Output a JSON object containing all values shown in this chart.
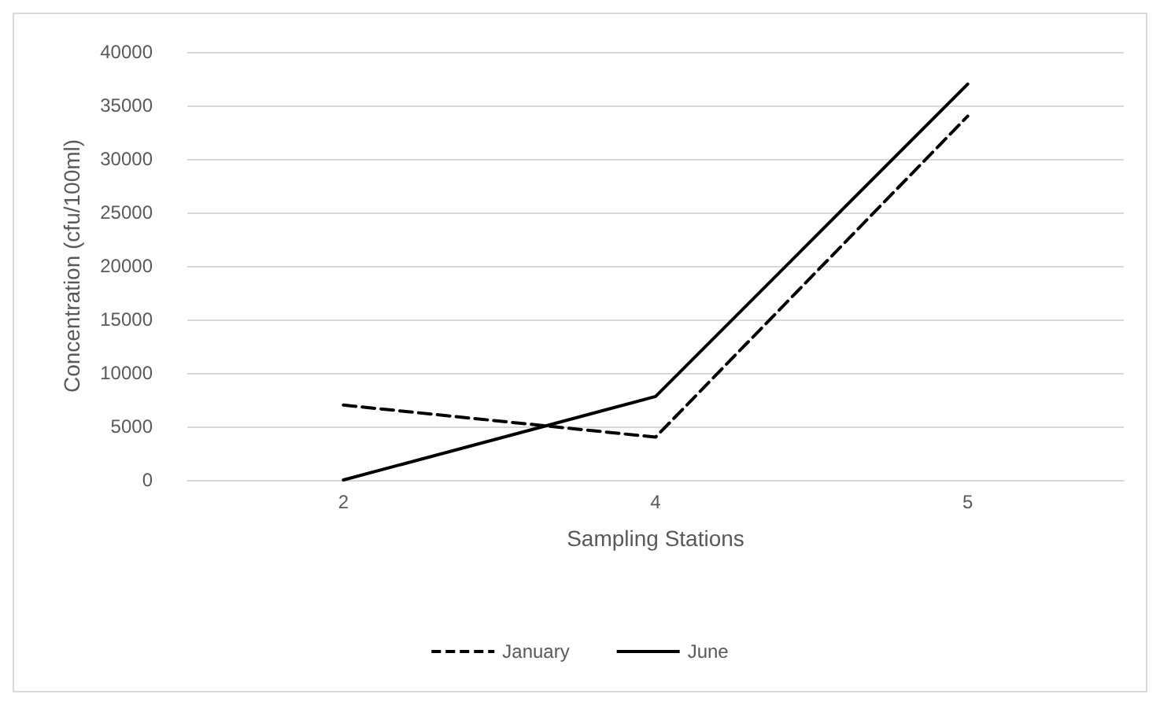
{
  "chart_data": {
    "type": "line",
    "xlabel": "Sampling Stations",
    "ylabel": "Concentration (cfu/100ml)",
    "categories": [
      "2",
      "4",
      "5"
    ],
    "series": [
      {
        "name": "January",
        "color": "#000000",
        "line_style": "dashed",
        "values": [
          7000,
          4000,
          34000
        ]
      },
      {
        "name": "June",
        "color": "#000000",
        "line_style": "solid",
        "values": [
          0,
          7800,
          37000
        ]
      }
    ],
    "ylim": [
      0,
      40000
    ],
    "yticks": [
      0,
      5000,
      10000,
      15000,
      20000,
      25000,
      30000,
      35000,
      40000
    ],
    "grid": "y",
    "legend": "bottom",
    "marker": "none"
  }
}
